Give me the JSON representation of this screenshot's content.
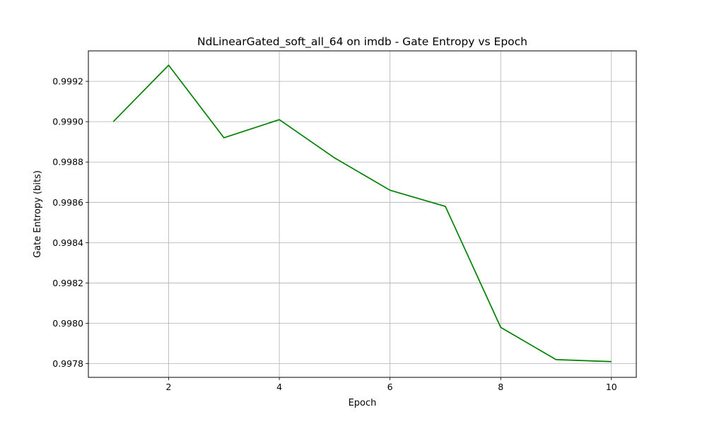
{
  "chart_data": {
    "type": "line",
    "title": "NdLinearGated_soft_all_64 on imdb - Gate Entropy vs Epoch",
    "xlabel": "Epoch",
    "ylabel": "Gate Entropy (bits)",
    "xlim": [
      0.55,
      10.45
    ],
    "ylim": [
      0.997732,
      0.999351
    ],
    "xticks": [
      2,
      4,
      6,
      8,
      10
    ],
    "xtick_labels": [
      "2",
      "4",
      "6",
      "8",
      "10"
    ],
    "yticks": [
      0.9978,
      0.998,
      0.9982,
      0.9984,
      0.9986,
      0.9988,
      0.999,
      0.9992
    ],
    "ytick_labels": [
      "0.9978",
      "0.9980",
      "0.9982",
      "0.9984",
      "0.9986",
      "0.9988",
      "0.9990",
      "0.9992"
    ],
    "grid": true,
    "series": [
      {
        "color": "#008000",
        "x": [
          1,
          2,
          3,
          4,
          5,
          6,
          7,
          8,
          9,
          10
        ],
        "y": [
          0.999,
          0.99928,
          0.99892,
          0.99901,
          0.99882,
          0.99866,
          0.99858,
          0.99798,
          0.99782,
          0.99781
        ]
      }
    ]
  }
}
